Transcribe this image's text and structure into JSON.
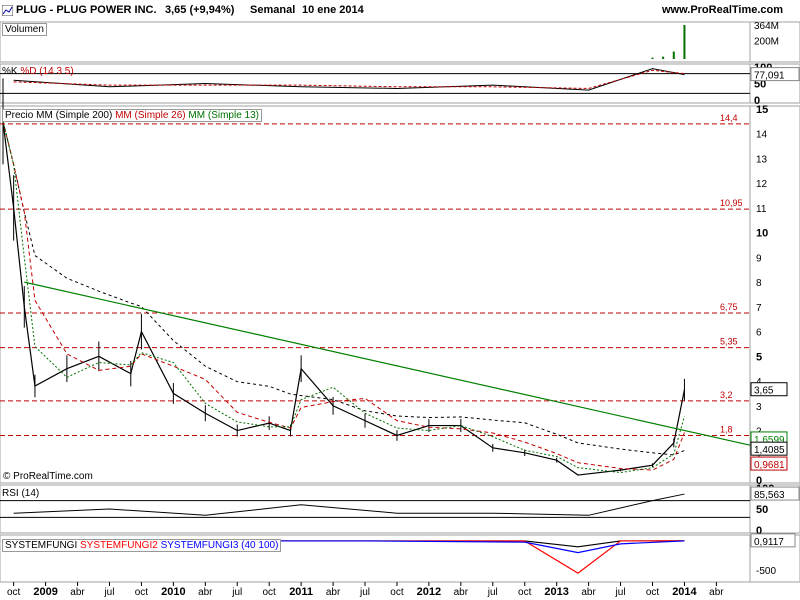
{
  "header": {
    "symbol": "PLUG - PLUG POWER INC.",
    "quote": "3,65 (+9,94%)",
    "period": "Semanal",
    "date": "10 ene 2014",
    "site": "www.ProRealTime.com"
  },
  "colors": {
    "accent": "#0000a0",
    "level_line": "#c00000",
    "ma200": "#000000",
    "ma26": "#c00000",
    "ma13": "#007000",
    "trendline": "#008000",
    "rsi": "#000000",
    "fungi1": "#000000",
    "fungi2": "#ff0000",
    "fungi3": "#0000ff"
  },
  "chart_data": [
    {
      "type": "bar",
      "title": "Volumen",
      "y_ticks": [
        "364M",
        "200M"
      ],
      "last_value_label": "364M",
      "ylim": [
        0,
        364
      ],
      "x": [
        "2013-10",
        "2013-11",
        "2013-12",
        "2014-01"
      ],
      "values": [
        15,
        25,
        80,
        364
      ],
      "label": "Volumen"
    },
    {
      "type": "line",
      "title": "%K %D (14 3 5)",
      "series_names": [
        "%K",
        "%D (14 3 5)"
      ],
      "y_ticks": [
        "100",
        "50",
        "0"
      ],
      "ylim": [
        0,
        100
      ],
      "last_value_label": "77,091",
      "x": [
        "2008-10",
        "2009-07",
        "2010-04",
        "2011-01",
        "2011-10",
        "2012-07",
        "2013-04",
        "2013-10",
        "2014-01"
      ],
      "series": [
        {
          "name": "%K",
          "values": [
            60,
            40,
            50,
            40,
            35,
            45,
            30,
            95,
            77
          ]
        },
        {
          "name": "%D (14 3 5)",
          "values": [
            55,
            45,
            45,
            45,
            40,
            40,
            35,
            90,
            80
          ]
        }
      ]
    },
    {
      "type": "line",
      "title": "Precio",
      "labels": [
        "Precio",
        "MM (Simple 200)",
        "MM (Simple 26)",
        "MM (Simple 13)"
      ],
      "ylim": [
        0,
        15
      ],
      "y_ticks": [
        "15",
        "14",
        "13",
        "12",
        "11",
        "10",
        "9",
        "8",
        "7",
        "6",
        "5",
        "4",
        "3",
        "2",
        "1",
        "0"
      ],
      "levels": [
        {
          "label": "14,4",
          "value": 14.4
        },
        {
          "label": "10,95",
          "value": 10.95
        },
        {
          "label": "6,75",
          "value": 6.75
        },
        {
          "label": "5,35",
          "value": 5.35
        },
        {
          "label": "3,2",
          "value": 3.2
        },
        {
          "label": "1,8",
          "value": 1.8
        }
      ],
      "value_tags": [
        {
          "label": "3,65",
          "value": 3.65,
          "color": "#000000"
        },
        {
          "label": "1,6599",
          "value": 1.66,
          "color": "#008000"
        },
        {
          "label": "1,4085",
          "value": 1.4085,
          "color": "#000000"
        },
        {
          "label": "0,9681",
          "value": 0.9681,
          "color": "#c00000"
        }
      ],
      "x": [
        "2008-09",
        "2008-10",
        "2008-11",
        "2008-12",
        "2009-03",
        "2009-06",
        "2009-09",
        "2009-10",
        "2010-01",
        "2010-04",
        "2010-07",
        "2010-10",
        "2010-12",
        "2011-01",
        "2011-04",
        "2011-07",
        "2011-10",
        "2012-01",
        "2012-04",
        "2012-07",
        "2012-10",
        "2013-01",
        "2013-03",
        "2013-07",
        "2013-10",
        "2013-12",
        "2014-01"
      ],
      "close": [
        14.5,
        11.0,
        7.0,
        3.8,
        4.5,
        5.0,
        4.3,
        6.0,
        3.5,
        2.7,
        2.0,
        2.3,
        2.0,
        4.5,
        3.0,
        2.4,
        1.8,
        2.2,
        2.2,
        1.3,
        1.1,
        0.8,
        0.2,
        0.4,
        0.6,
        1.5,
        3.65
      ],
      "trendline": [
        {
          "x": "2008-11",
          "value": 8.0
        },
        {
          "x": "2014-01",
          "value": 1.4085
        }
      ]
    },
    {
      "type": "line",
      "title": "RSI (14)",
      "y_ticks": [
        "100",
        "50",
        "0"
      ],
      "ylim": [
        0,
        100
      ],
      "last_value_label": "85,563",
      "x": [
        "2008-10",
        "2009-07",
        "2010-04",
        "2011-01",
        "2011-10",
        "2012-07",
        "2013-04",
        "2013-10",
        "2014-01"
      ],
      "values": [
        40,
        50,
        35,
        60,
        40,
        40,
        35,
        70,
        85.563
      ]
    },
    {
      "type": "line",
      "labels": [
        "SYSTEMFUNGI",
        "SYSTEMFUNGI2",
        "SYSTEMFUNGI3 (40 100)"
      ],
      "y_ticks": [
        "0",
        "-500"
      ],
      "last_value_label": "0,9117",
      "x": [
        "2008-10",
        "2010-01",
        "2011-07",
        "2012-10",
        "2013-03",
        "2013-07",
        "2014-01"
      ],
      "series": [
        {
          "name": "SYSTEMFUNGI",
          "values": [
            0,
            0,
            0,
            0,
            -100,
            0,
            1
          ]
        },
        {
          "name": "SYSTEMFUNGI2",
          "values": [
            0,
            0,
            0,
            0,
            -550,
            0,
            1
          ]
        },
        {
          "name": "SYSTEMFUNGI3 (40 100)",
          "values": [
            0,
            0,
            0,
            -20,
            -200,
            -50,
            0
          ]
        }
      ]
    }
  ],
  "x_axis": {
    "labels": [
      "oct",
      "2009",
      "abr",
      "jul",
      "oct",
      "2010",
      "abr",
      "jul",
      "oct",
      "2011",
      "abr",
      "jul",
      "oct",
      "2012",
      "abr",
      "jul",
      "oct",
      "2013",
      "abr",
      "jul",
      "oct",
      "2014",
      "abr"
    ],
    "bold": [
      false,
      true,
      false,
      false,
      false,
      true,
      false,
      false,
      false,
      true,
      false,
      false,
      false,
      true,
      false,
      false,
      false,
      true,
      false,
      false,
      false,
      true,
      false
    ]
  },
  "copyright": "© ProRealTime.com"
}
